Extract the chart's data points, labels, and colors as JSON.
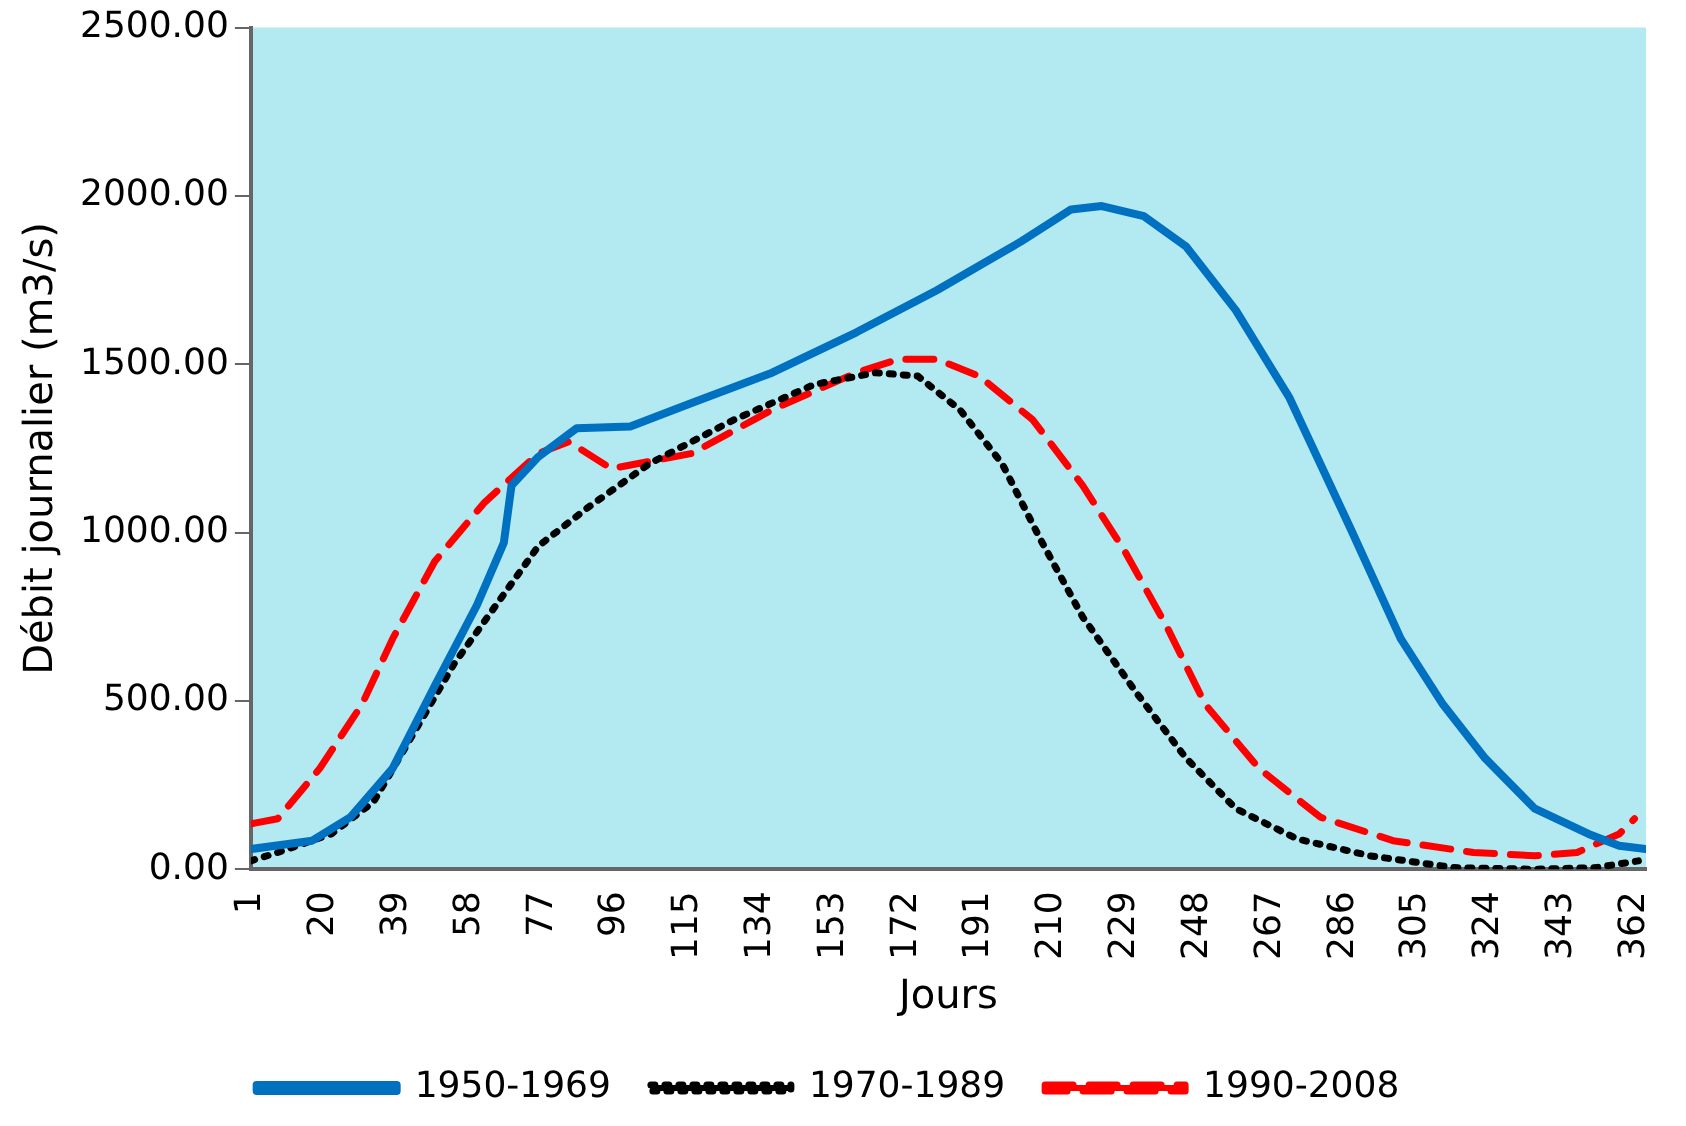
{
  "chart_data": {
    "type": "line",
    "xlabel": "Jours",
    "ylabel": "Débit journalier (m3/s)",
    "xlim": [
      1,
      365
    ],
    "ylim": [
      0,
      2500
    ],
    "xticks": [
      1,
      20,
      39,
      58,
      77,
      96,
      115,
      134,
      153,
      172,
      191,
      210,
      229,
      248,
      267,
      286,
      305,
      324,
      343,
      362
    ],
    "yticks": [
      {
        "value": 0,
        "label": "0.00"
      },
      {
        "value": 500,
        "label": "500.00"
      },
      {
        "value": 1000,
        "label": "1000.00"
      },
      {
        "value": 1500,
        "label": "1500.00"
      },
      {
        "value": 2000,
        "label": "2000.00"
      },
      {
        "value": 2500,
        "label": "2500.00"
      }
    ],
    "grid": false,
    "legend": "bottom",
    "marker": "none",
    "series": [
      {
        "name": "1950-1969",
        "color": "#0070c0",
        "line_style": "solid",
        "x": [
          1,
          17,
          27,
          38,
          49,
          60,
          67,
          69,
          76,
          86,
          100,
          116,
          137,
          159,
          180,
          202,
          215,
          223,
          234,
          245,
          258,
          272,
          288,
          301,
          312,
          323,
          336,
          350,
          358,
          365
        ],
        "values": [
          60,
          85,
          155,
          300,
          545,
          785,
          970,
          1140,
          1225,
          1310,
          1315,
          1385,
          1475,
          1595,
          1720,
          1865,
          1960,
          1970,
          1940,
          1850,
          1660,
          1400,
          1010,
          685,
          490,
          330,
          180,
          105,
          70,
          60
        ]
      },
      {
        "name": "1970-1989",
        "color": "#000000",
        "line_style": "dotted",
        "x": [
          1,
          8,
          22,
          33,
          43,
          54,
          65,
          76,
          89,
          105,
          127,
          148,
          164,
          175,
          186,
          197,
          207,
          218,
          232,
          245,
          258,
          274,
          293,
          315,
          336,
          352,
          363
        ],
        "values": [
          25,
          50,
          105,
          200,
          395,
          610,
          785,
          960,
          1075,
          1205,
          1335,
          1440,
          1475,
          1465,
          1365,
          1205,
          980,
          750,
          525,
          330,
          180,
          90,
          40,
          5,
          0,
          5,
          25
        ]
      },
      {
        "name": "1990-2008",
        "color": "#ff0000",
        "line_style": "dashed",
        "x": [
          1,
          8,
          19,
          30,
          38,
          49,
          62,
          76,
          84,
          95,
          116,
          137,
          159,
          170,
          180,
          191,
          205,
          218,
          229,
          240,
          250,
          264,
          280,
          299,
          320,
          336,
          347,
          358,
          362
        ],
        "values": [
          135,
          150,
          300,
          490,
          685,
          915,
          1090,
          1235,
          1270,
          1190,
          1235,
          1365,
          1475,
          1515,
          1515,
          1465,
          1335,
          1140,
          945,
          720,
          490,
          300,
          155,
          85,
          50,
          40,
          50,
          105,
          150
        ]
      }
    ]
  }
}
